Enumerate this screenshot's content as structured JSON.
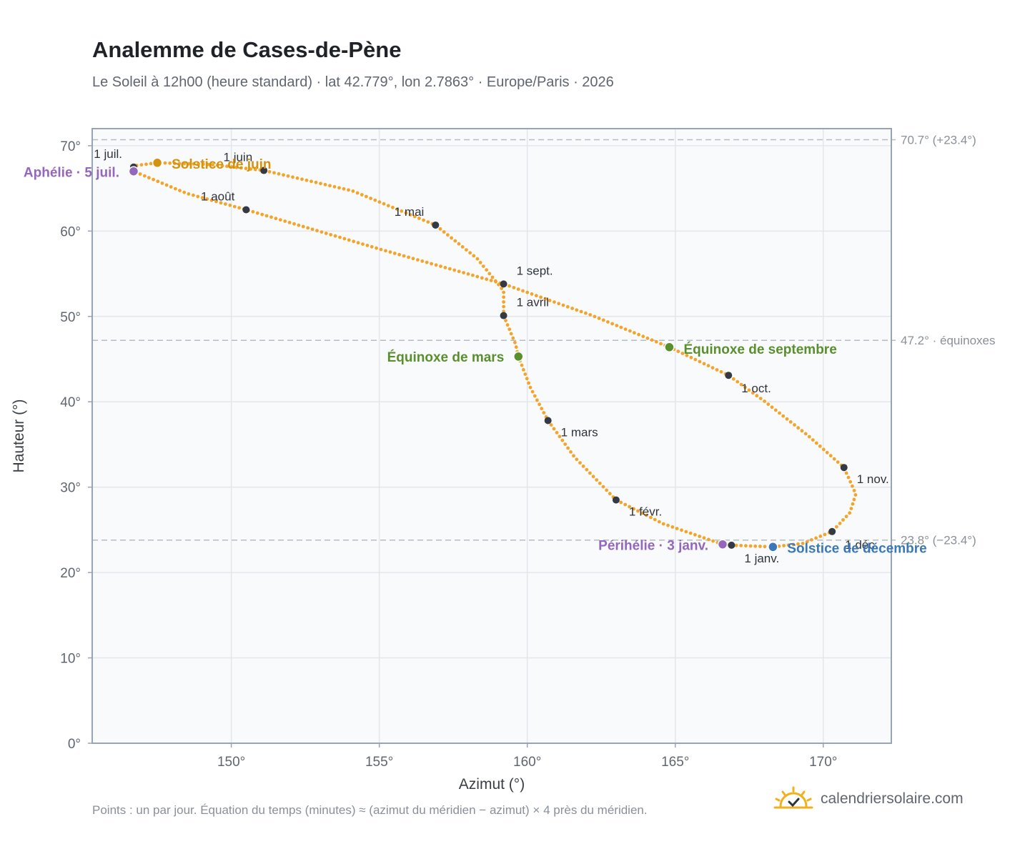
{
  "title": "Analemme de Cases-de-Pène",
  "subtitle": "Le Soleil à 12h00 (heure standard) · lat 42.779°, lon 2.7863° · Europe/Paris · 2026",
  "footnote": "Points : un par jour. Équation du temps (minutes) ≈ (azimut du méridien − azimut) × 4 près du méridien.",
  "brand": "calendriersolaire.com",
  "brand_icon": "sun-check-icon",
  "colors": {
    "curve": "#f2a52a",
    "month_marker": "#333a45",
    "equinox": "#5a8f2e",
    "june_solstice": "#d4930e",
    "december_solstice": "#3a78b8",
    "apsis": "#9467bd",
    "plot_bg": "#f8fafc",
    "grid": "#e3e7ec",
    "ref_line": "#b3bcc7",
    "frame": "#98a4b3"
  },
  "chart_data": {
    "type": "scatter",
    "xlabel": "Azimut (°)",
    "ylabel": "Hauteur (°)",
    "xlim": [
      145.3,
      172.3
    ],
    "ylim": [
      0,
      72
    ],
    "xticks": [
      150,
      155,
      160,
      165,
      170
    ],
    "xtick_labels": [
      "150°",
      "155°",
      "160°",
      "165°",
      "170°"
    ],
    "yticks": [
      0,
      10,
      20,
      30,
      40,
      50,
      60,
      70
    ],
    "ytick_labels": [
      "0°",
      "10°",
      "20°",
      "30°",
      "40°",
      "50°",
      "60°",
      "70°"
    ],
    "grid": true,
    "reference_lines": [
      {
        "y": 70.7,
        "label": "70.7° (+23.4°)"
      },
      {
        "y": 47.2,
        "label": "47.2° · équinoxes"
      },
      {
        "y": 23.8,
        "label": "23.8° (−23.4°)"
      }
    ],
    "month_markers": [
      {
        "label": "1 janv.",
        "x": 166.9,
        "y": 23.2
      },
      {
        "label": "1 févr.",
        "x": 163.0,
        "y": 28.5
      },
      {
        "label": "1 mars",
        "x": 160.7,
        "y": 37.8
      },
      {
        "label": "1 avril",
        "x": 159.2,
        "y": 50.1
      },
      {
        "label": "1 mai",
        "x": 156.9,
        "y": 60.7
      },
      {
        "label": "1 juin",
        "x": 151.1,
        "y": 67.1
      },
      {
        "label": "1 juil.",
        "x": 146.7,
        "y": 67.5
      },
      {
        "label": "1 août",
        "x": 150.5,
        "y": 62.5
      },
      {
        "label": "1 sept.",
        "x": 159.2,
        "y": 53.8
      },
      {
        "label": "1 oct.",
        "x": 166.8,
        "y": 43.1
      },
      {
        "label": "1 nov.",
        "x": 170.7,
        "y": 32.3
      },
      {
        "label": "1 déc.",
        "x": 170.3,
        "y": 24.8
      }
    ],
    "events": [
      {
        "label": "Équinoxe de mars",
        "x": 159.7,
        "y": 45.3,
        "kind": "equinox"
      },
      {
        "label": "Équinoxe de septembre",
        "x": 164.8,
        "y": 46.4,
        "kind": "equinox"
      },
      {
        "label": "Solstice de juin",
        "x": 147.5,
        "y": 68.0,
        "kind": "june_solstice"
      },
      {
        "label": "Solstice de décembre",
        "x": 168.3,
        "y": 23.0,
        "kind": "december_solstice"
      },
      {
        "label": "Aphélie · 5 juil.",
        "x": 146.7,
        "y": 67.0,
        "kind": "apsis"
      },
      {
        "label": "Périhélie · 3 janv.",
        "x": 166.6,
        "y": 23.3,
        "kind": "apsis"
      }
    ],
    "curve_path": [
      [
        166.9,
        23.2
      ],
      [
        168.3,
        23.0
      ],
      [
        169.3,
        23.4
      ],
      [
        170.3,
        24.8
      ],
      [
        170.9,
        27.0
      ],
      [
        171.1,
        29.2
      ],
      [
        170.7,
        32.3
      ],
      [
        169.5,
        36.0
      ],
      [
        168.0,
        40.1
      ],
      [
        166.8,
        43.1
      ],
      [
        164.8,
        46.4
      ],
      [
        162.2,
        50.1
      ],
      [
        159.2,
        53.8
      ],
      [
        155.1,
        57.8
      ],
      [
        150.5,
        62.5
      ],
      [
        148.5,
        64.4
      ],
      [
        146.7,
        67.0
      ],
      [
        146.6,
        67.6
      ],
      [
        147.5,
        68.0
      ],
      [
        149.3,
        67.8
      ],
      [
        151.1,
        67.1
      ],
      [
        154.1,
        64.7
      ],
      [
        156.9,
        60.7
      ],
      [
        158.3,
        56.8
      ],
      [
        159.2,
        53.0
      ],
      [
        159.2,
        50.1
      ],
      [
        159.6,
        46.8
      ],
      [
        159.7,
        45.3
      ],
      [
        160.1,
        41.7
      ],
      [
        160.7,
        37.8
      ],
      [
        161.6,
        33.5
      ],
      [
        163.0,
        28.5
      ],
      [
        164.6,
        25.7
      ],
      [
        166.6,
        23.3
      ],
      [
        166.9,
        23.2
      ]
    ]
  }
}
